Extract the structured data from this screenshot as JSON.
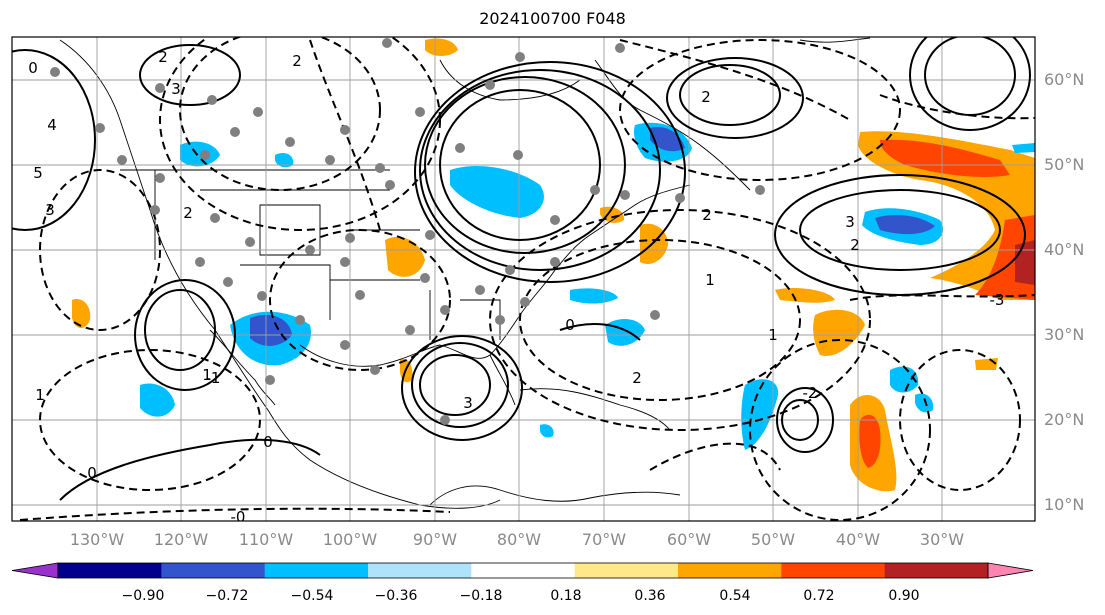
{
  "title": "2024100700 F048",
  "map": {
    "projection": "equirectangular",
    "lon_range": [
      -137,
      -16
    ],
    "lat_range": [
      8,
      65
    ],
    "gridlines": true,
    "lon_labels": [
      "130°W",
      "120°W",
      "110°W",
      "100°W",
      "90°W",
      "80°W",
      "70°W",
      "60°W",
      "50°W",
      "40°W",
      "30°W"
    ],
    "lat_labels": [
      "10°N",
      "20°N",
      "30°N",
      "40°N",
      "50°N",
      "60°N"
    ],
    "contour_labels": [
      "0",
      "0",
      "0",
      "0",
      "1",
      "1",
      "1",
      "1",
      "2",
      "2",
      "2",
      "2",
      "2",
      "2",
      "2",
      "3",
      "3",
      "3",
      "3",
      "4",
      "5",
      "-1",
      "-2",
      "-3",
      "-0"
    ],
    "colors": {
      "gridline": "#9e9e9e",
      "axis_label": "#8a8a8a",
      "contour": "#000000",
      "station": "#808080"
    }
  },
  "colorbar": {
    "colors": [
      "#9932cc",
      "#00008b",
      "#3355cc",
      "#00bfff",
      "#aee3fb",
      "#ffffff",
      "#ffe88a",
      "#ffa500",
      "#ff4500",
      "#b22222",
      "#ff85b0"
    ],
    "tick_labels": [
      "−0.90",
      "−0.72",
      "−0.54",
      "−0.36",
      "−0.18",
      "0.18",
      "0.36",
      "0.54",
      "0.72",
      "0.90"
    ],
    "extend": "both"
  }
}
